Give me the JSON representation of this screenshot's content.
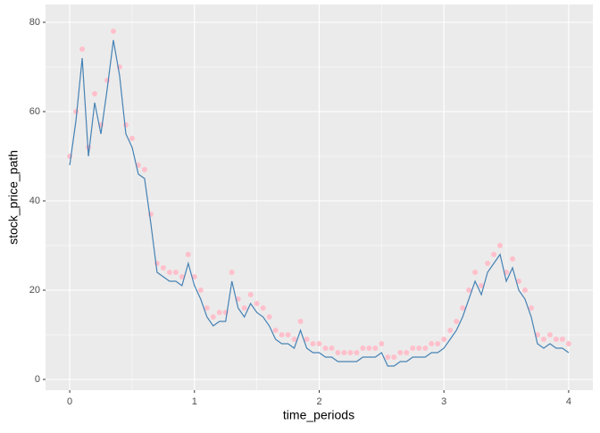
{
  "chart_data": {
    "type": "line",
    "xlabel": "time_periods",
    "ylabel": "stock_price_path",
    "x": [
      0,
      0.05,
      0.1,
      0.15,
      0.2,
      0.25,
      0.3,
      0.35,
      0.4,
      0.45,
      0.5,
      0.55,
      0.6,
      0.65,
      0.7,
      0.75,
      0.8,
      0.85,
      0.9,
      0.95,
      1,
      1.05,
      1.1,
      1.15,
      1.2,
      1.25,
      1.3,
      1.35,
      1.4,
      1.45,
      1.5,
      1.55,
      1.6,
      1.65,
      1.7,
      1.75,
      1.8,
      1.85,
      1.9,
      1.95,
      2,
      2.05,
      2.1,
      2.15,
      2.2,
      2.25,
      2.3,
      2.35,
      2.4,
      2.45,
      2.5,
      2.55,
      2.6,
      2.65,
      2.7,
      2.75,
      2.8,
      2.85,
      2.9,
      2.95,
      3,
      3.05,
      3.1,
      3.15,
      3.2,
      3.25,
      3.3,
      3.35,
      3.4,
      3.45,
      3.5,
      3.55,
      3.6,
      3.65,
      3.7,
      3.75,
      3.8,
      3.85,
      3.9,
      3.95,
      4
    ],
    "series": [
      {
        "kind": "point",
        "color": "#ffc0cb",
        "values": [
          50,
          60,
          74,
          52,
          64,
          57,
          67,
          78,
          70,
          57,
          54,
          48,
          47,
          37,
          26,
          25,
          24,
          24,
          23,
          28,
          23,
          20,
          16,
          14,
          15,
          15,
          24,
          18,
          16,
          19,
          17,
          16,
          14,
          11,
          10,
          10,
          9,
          13,
          9,
          8,
          8,
          7,
          7,
          6,
          6,
          6,
          6,
          7,
          7,
          7,
          8,
          5,
          5,
          6,
          6,
          7,
          7,
          7,
          8,
          8,
          9,
          11,
          13,
          16,
          20,
          24,
          21,
          26,
          28,
          30,
          24,
          27,
          22,
          20,
          16,
          10,
          9,
          10,
          9,
          9,
          8
        ]
      },
      {
        "kind": "line",
        "color": "#4682b4",
        "values": [
          48,
          58,
          72,
          50,
          62,
          55,
          65,
          76,
          68,
          55,
          52,
          46,
          45,
          35,
          24,
          23,
          22,
          22,
          21,
          26,
          21,
          18,
          14,
          12,
          13,
          13,
          22,
          16,
          14,
          17,
          15,
          14,
          12,
          9,
          8,
          8,
          7,
          11,
          7,
          6,
          6,
          5,
          5,
          4,
          4,
          4,
          4,
          5,
          5,
          5,
          6,
          3,
          3,
          4,
          4,
          5,
          5,
          5,
          6,
          6,
          7,
          9,
          11,
          14,
          18,
          22,
          19,
          24,
          26,
          28,
          22,
          25,
          20,
          18,
          14,
          8,
          7,
          8,
          7,
          7,
          6
        ]
      }
    ],
    "xlim": [
      -0.194,
      4.194
    ],
    "xticks": [
      0,
      1,
      2,
      3,
      4
    ],
    "ylim": [
      -2.4,
      84
    ],
    "yticks": [
      0,
      20,
      40,
      60,
      80
    ],
    "grid": true
  }
}
